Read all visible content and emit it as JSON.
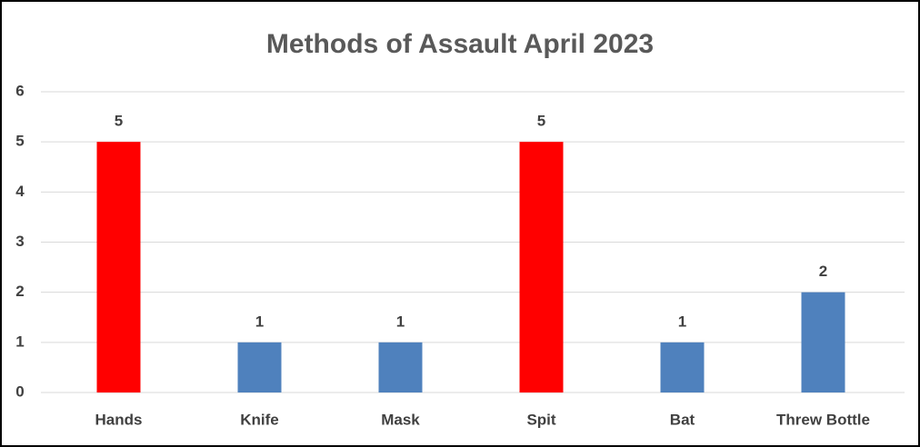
{
  "chart_data": {
    "type": "bar",
    "title": "Methods of Assault April 2023",
    "categories": [
      "Hands",
      "Knife",
      "Mask",
      "Spit",
      "Bat",
      "Threw Bottle"
    ],
    "values": [
      5,
      1,
      1,
      5,
      1,
      2
    ],
    "colors": [
      "#ff0000",
      "#4f81bd",
      "#4f81bd",
      "#ff0000",
      "#4f81bd",
      "#4f81bd"
    ],
    "ylim": [
      0,
      6
    ],
    "yticks": [
      0,
      1,
      2,
      3,
      4,
      5,
      6
    ],
    "grid": true
  }
}
